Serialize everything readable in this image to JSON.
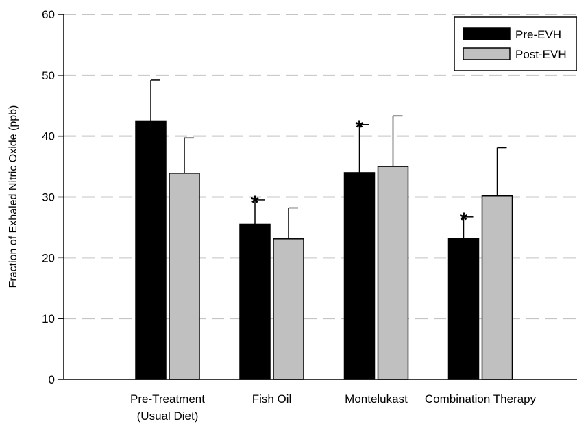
{
  "chart_data": {
    "type": "bar",
    "title": "",
    "xlabel": "",
    "ylabel": "Fraction of Exhaled Nitric Oxide (ppb)",
    "ylim": [
      0,
      60
    ],
    "yticks": [
      0,
      10,
      20,
      30,
      40,
      50,
      60
    ],
    "grid": "horizontal-dashed",
    "legend_position": "top-right",
    "categories": [
      [
        "Pre-Treatment",
        "(Usual Diet)"
      ],
      [
        "Fish Oil"
      ],
      [
        "Montelukast"
      ],
      [
        "Combination Therapy"
      ]
    ],
    "series": [
      {
        "name": "Pre-EVH",
        "color": "#000000",
        "values": [
          42.5,
          25.5,
          34.0,
          23.2
        ],
        "errors": [
          6.7,
          4.0,
          7.9,
          3.5
        ]
      },
      {
        "name": "Post-EVH",
        "color": "#c0c0c0",
        "values": [
          33.9,
          23.1,
          35.0,
          30.2
        ],
        "errors": [
          5.8,
          5.1,
          8.3,
          7.9
        ]
      }
    ],
    "annotations": [
      {
        "text": "*",
        "series": 0,
        "category": 1
      },
      {
        "text": "*",
        "series": 0,
        "category": 2
      },
      {
        "text": "*",
        "series": 0,
        "category": 3
      }
    ]
  }
}
